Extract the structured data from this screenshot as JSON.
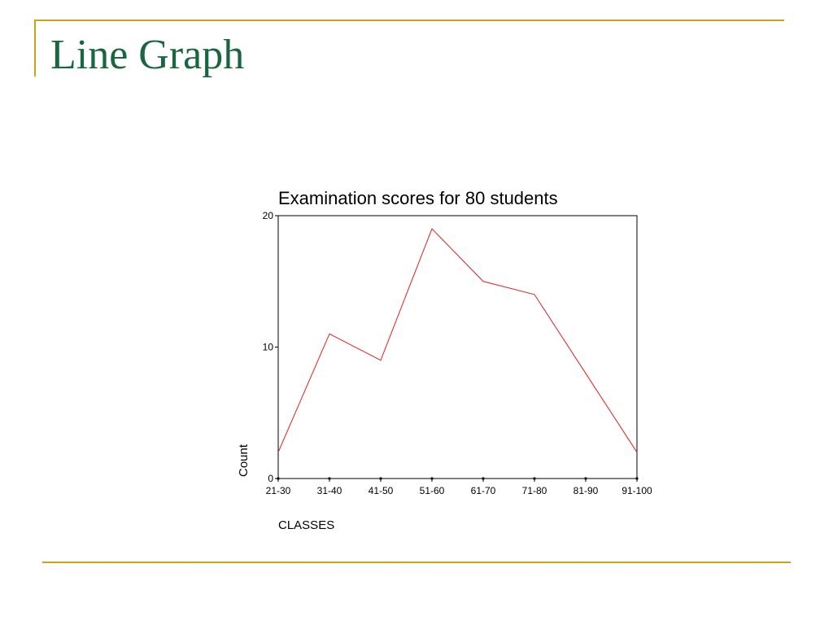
{
  "slide": {
    "title": "Line Graph"
  },
  "chart_data": {
    "type": "line",
    "title": "Examination scores for 80 students",
    "xlabel": "CLASSES",
    "ylabel": "Count",
    "categories": [
      "21-30",
      "31-40",
      "41-50",
      "51-60",
      "61-70",
      "71-80",
      "81-90",
      "91-100"
    ],
    "series": [
      {
        "values": [
          2,
          11,
          9,
          19,
          15,
          14,
          8,
          2
        ]
      }
    ],
    "ylim": [
      0,
      20
    ],
    "yticks": [
      0,
      10,
      20
    ],
    "grid": false,
    "legend": "none",
    "colors": {
      "line": "#e02020",
      "axis": "#000000"
    }
  }
}
